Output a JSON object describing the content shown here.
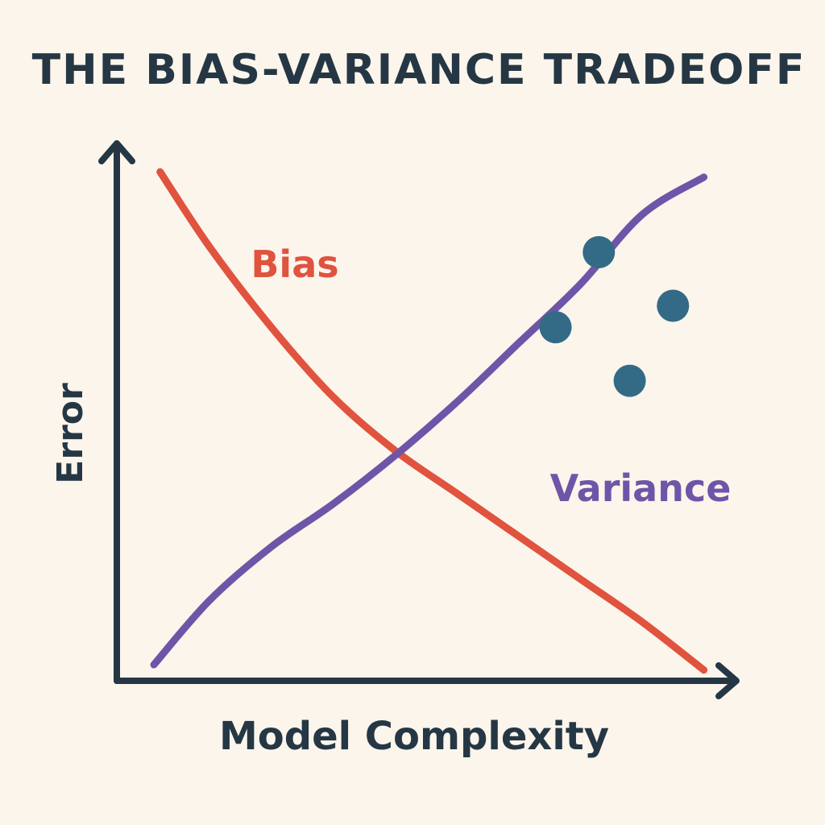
{
  "chart_data": {
    "type": "line",
    "title": "THE BIAS-VARIANCE TRADEOFF",
    "xlabel": "Model Complexity",
    "ylabel": "Error",
    "xlim": [
      0,
      100
    ],
    "ylim": [
      0,
      100
    ],
    "grid": false,
    "axis_ticks": false,
    "series": [
      {
        "name": "Bias",
        "color": "#e0533e",
        "x": [
          7,
          15,
          25,
          35,
          45,
          55,
          65,
          75,
          85,
          95
        ],
        "y": [
          95,
          81,
          66,
          53,
          43,
          35,
          27,
          19,
          11,
          2
        ]
      },
      {
        "name": "Variance",
        "color": "#6f55a8",
        "x": [
          6,
          15,
          25,
          35,
          45,
          55,
          65,
          75,
          85,
          95
        ],
        "y": [
          3,
          15,
          25,
          33,
          42,
          52,
          63,
          74,
          87,
          94
        ]
      }
    ],
    "scatter": {
      "color": "#336b86",
      "points": [
        {
          "x": 71,
          "y": 66
        },
        {
          "x": 78,
          "y": 80
        },
        {
          "x": 90,
          "y": 70
        },
        {
          "x": 83,
          "y": 56
        }
      ]
    },
    "colors": {
      "background": "#fcf5ec",
      "axis": "#253744",
      "text": "#253744"
    }
  }
}
